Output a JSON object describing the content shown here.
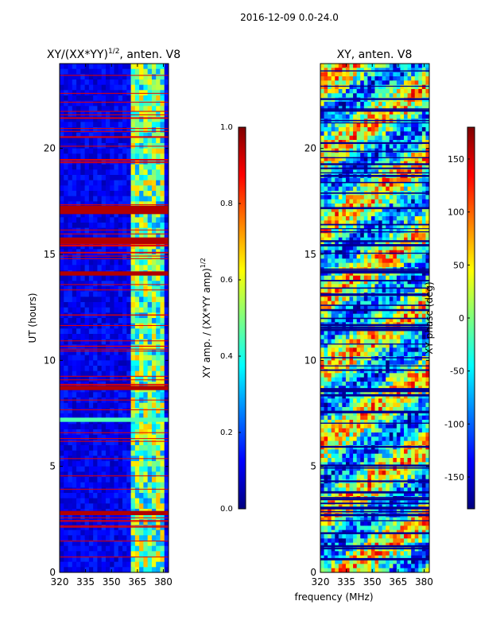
{
  "figure": {
    "suptitle": "2016-12-09 0.0-24.0",
    "shared_xlabel": "frequency (MHz)"
  },
  "colormap": {
    "name": "jet",
    "stops": [
      "#00007f",
      "#0000ff",
      "#007fff",
      "#00ffff",
      "#7fff7f",
      "#ffff00",
      "#ff7f00",
      "#ff0000",
      "#7f0000"
    ]
  },
  "chart_data": [
    {
      "type": "heatmap",
      "title_main": "XY/(XX*YY)",
      "title_sup": "1/2",
      "title_suffix": ", anten. V8",
      "xlabel": "",
      "ylabel": "UT (hours)",
      "xlim": [
        320,
        383
      ],
      "ylim": [
        0,
        24
      ],
      "xticks": [
        320,
        335,
        350,
        365,
        380
      ],
      "yticks": [
        0,
        5,
        10,
        15,
        20
      ],
      "colorbar": {
        "label_main": "XY amp. / (XX*YY amp)",
        "label_sup": "1/2",
        "range": [
          0.0,
          1.0
        ],
        "ticks": [
          "0.0",
          "0.2",
          "0.4",
          "0.6",
          "0.8",
          "1.0"
        ]
      },
      "description_bands": {
        "bright_freq_range_mhz": [
          360,
          380
        ],
        "saturated_hours": [
          [
            16.9,
            17.3
          ],
          [
            15.5,
            15.8
          ],
          [
            14.0,
            14.2
          ],
          [
            8.6,
            8.8
          ],
          [
            2.7,
            2.9
          ]
        ],
        "bright_hours": [
          [
            7.1,
            7.3
          ]
        ]
      }
    },
    {
      "type": "heatmap",
      "title_main": "XY, anten. V8",
      "xlabel": "",
      "ylabel": "",
      "xlim": [
        320,
        383
      ],
      "ylim": [
        0,
        24
      ],
      "xticks": [
        320,
        335,
        350,
        365,
        380
      ],
      "yticks": [
        0,
        5,
        10,
        15,
        20
      ],
      "colorbar": {
        "label_main": "XY phase (deg)",
        "range": [
          -180,
          180
        ],
        "ticks": [
          "-150",
          "-100",
          "-50",
          "0",
          "50",
          "100",
          "150"
        ],
        "tick_values": [
          -150,
          -100,
          -50,
          0,
          50,
          100,
          150
        ]
      }
    }
  ]
}
